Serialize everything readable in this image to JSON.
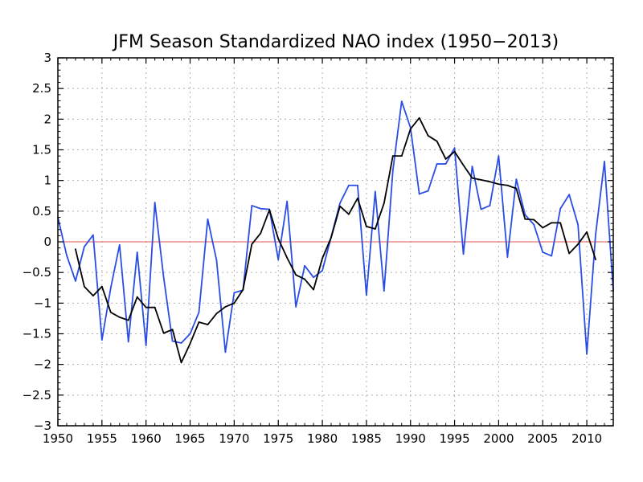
{
  "chart_data": {
    "type": "line",
    "title": "JFM Season Standardized NAO index (1950−2013)",
    "xlabel": "",
    "ylabel": "",
    "xlim": [
      1950,
      2013
    ],
    "ylim": [
      -3,
      3
    ],
    "x_ticks": [
      1950,
      1955,
      1960,
      1965,
      1970,
      1975,
      1980,
      1985,
      1990,
      1995,
      2000,
      2005,
      2010
    ],
    "y_ticks": [
      3,
      2.5,
      2,
      1.5,
      1,
      0.5,
      0,
      -0.5,
      -1,
      -1.5,
      -2,
      -2.5,
      -3
    ],
    "y_tick_labels": [
      "3",
      "2.5",
      "2",
      "1.5",
      "1",
      "0.5",
      "0",
      "−0.5",
      "−1",
      "−1.5",
      "−2",
      "−2.5",
      "−3"
    ],
    "grid": true,
    "reference_line": {
      "y": 0,
      "color": "#e05050"
    },
    "series": [
      {
        "color": "#2a4de6",
        "points": [
          [
            1950,
            0.4
          ],
          [
            1951,
            -0.22
          ],
          [
            1952,
            -0.64
          ],
          [
            1953,
            -0.08
          ],
          [
            1954,
            0.11
          ],
          [
            1955,
            -1.6
          ],
          [
            1956,
            -0.75
          ],
          [
            1957,
            -0.05
          ],
          [
            1958,
            -1.63
          ],
          [
            1959,
            -0.17
          ],
          [
            1960,
            -1.69
          ],
          [
            1961,
            0.64
          ],
          [
            1962,
            -0.58
          ],
          [
            1963,
            -1.62
          ],
          [
            1964,
            -1.65
          ],
          [
            1965,
            -1.5
          ],
          [
            1966,
            -1.15
          ],
          [
            1967,
            0.37
          ],
          [
            1968,
            -0.3
          ],
          [
            1969,
            -1.8
          ],
          [
            1970,
            -0.83
          ],
          [
            1971,
            -0.79
          ],
          [
            1972,
            0.59
          ],
          [
            1973,
            0.54
          ],
          [
            1974,
            0.53
          ],
          [
            1975,
            -0.29
          ],
          [
            1976,
            0.66
          ],
          [
            1977,
            -1.06
          ],
          [
            1978,
            -0.39
          ],
          [
            1979,
            -0.58
          ],
          [
            1980,
            -0.47
          ],
          [
            1981,
            0.08
          ],
          [
            1982,
            0.63
          ],
          [
            1983,
            0.92
          ],
          [
            1984,
            0.92
          ],
          [
            1985,
            -0.87
          ],
          [
            1986,
            0.82
          ],
          [
            1987,
            -0.8
          ],
          [
            1988,
            1.16
          ],
          [
            1989,
            2.29
          ],
          [
            1990,
            1.86
          ],
          [
            1991,
            0.78
          ],
          [
            1992,
            0.83
          ],
          [
            1993,
            1.27
          ],
          [
            1994,
            1.27
          ],
          [
            1995,
            1.53
          ],
          [
            1996,
            -0.2
          ],
          [
            1997,
            1.23
          ],
          [
            1998,
            0.53
          ],
          [
            1999,
            0.59
          ],
          [
            2000,
            1.4
          ],
          [
            2001,
            -0.25
          ],
          [
            2002,
            1.02
          ],
          [
            2003,
            0.44
          ],
          [
            2004,
            0.28
          ],
          [
            2005,
            -0.17
          ],
          [
            2006,
            -0.23
          ],
          [
            2007,
            0.54
          ],
          [
            2008,
            0.77
          ],
          [
            2009,
            0.28
          ],
          [
            2010,
            -1.83
          ],
          [
            2011,
            0.12
          ],
          [
            2012,
            1.31
          ],
          [
            2013,
            -0.8
          ]
        ]
      },
      {
        "color": "#000000",
        "points": [
          [
            1952,
            -0.12
          ],
          [
            1953,
            -0.73
          ],
          [
            1954,
            -0.88
          ],
          [
            1955,
            -0.73
          ],
          [
            1956,
            -1.15
          ],
          [
            1957,
            -1.23
          ],
          [
            1958,
            -1.28
          ],
          [
            1959,
            -0.9
          ],
          [
            1960,
            -1.07
          ],
          [
            1961,
            -1.07
          ],
          [
            1962,
            -1.49
          ],
          [
            1963,
            -1.43
          ],
          [
            1964,
            -1.97
          ],
          [
            1965,
            -1.66
          ],
          [
            1966,
            -1.31
          ],
          [
            1967,
            -1.35
          ],
          [
            1968,
            -1.17
          ],
          [
            1969,
            -1.06
          ],
          [
            1970,
            -1.0
          ],
          [
            1971,
            -0.78
          ],
          [
            1972,
            -0.04
          ],
          [
            1973,
            0.14
          ],
          [
            1974,
            0.52
          ],
          [
            1975,
            0.05
          ],
          [
            1976,
            -0.26
          ],
          [
            1977,
            -0.54
          ],
          [
            1978,
            -0.61
          ],
          [
            1979,
            -0.78
          ],
          [
            1980,
            -0.27
          ],
          [
            1981,
            0.07
          ],
          [
            1982,
            0.58
          ],
          [
            1983,
            0.45
          ],
          [
            1984,
            0.71
          ],
          [
            1985,
            0.25
          ],
          [
            1986,
            0.21
          ],
          [
            1987,
            0.63
          ],
          [
            1988,
            1.4
          ],
          [
            1989,
            1.4
          ],
          [
            1990,
            1.84
          ],
          [
            1991,
            2.02
          ],
          [
            1992,
            1.73
          ],
          [
            1993,
            1.64
          ],
          [
            1994,
            1.35
          ],
          [
            1995,
            1.47
          ],
          [
            1996,
            1.25
          ],
          [
            1997,
            1.04
          ],
          [
            1998,
            1.01
          ],
          [
            1999,
            0.98
          ],
          [
            2000,
            0.94
          ],
          [
            2001,
            0.92
          ],
          [
            2002,
            0.87
          ],
          [
            2003,
            0.37
          ],
          [
            2004,
            0.36
          ],
          [
            2005,
            0.23
          ],
          [
            2006,
            0.31
          ],
          [
            2007,
            0.31
          ],
          [
            2008,
            -0.19
          ],
          [
            2009,
            -0.04
          ],
          [
            2010,
            0.16
          ],
          [
            2011,
            -0.29
          ]
        ]
      }
    ]
  }
}
